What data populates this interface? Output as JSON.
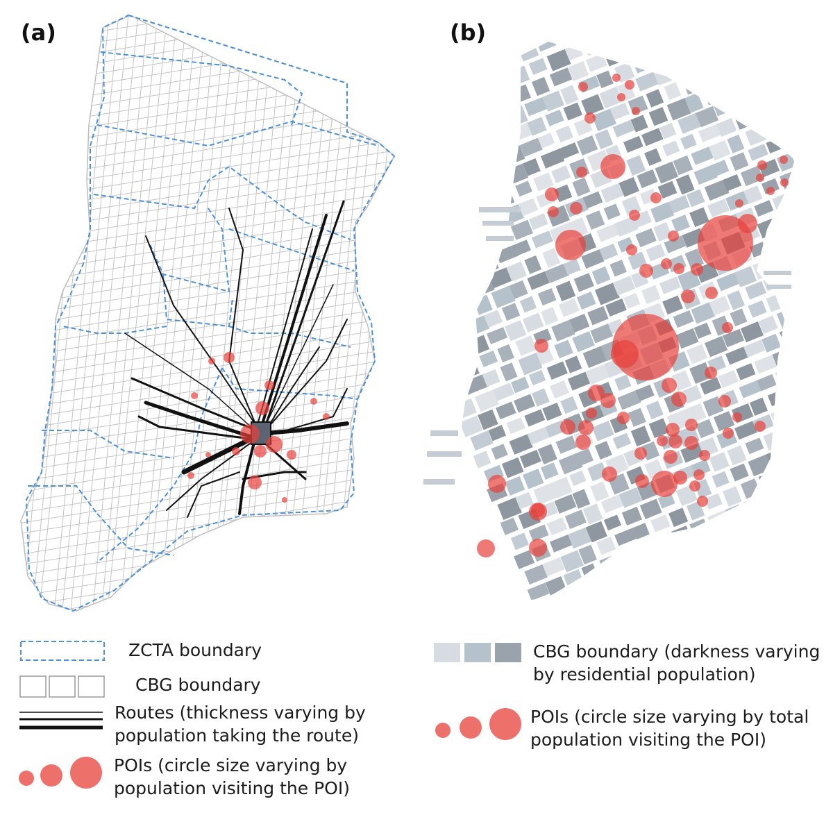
{
  "panels": {
    "a": {
      "label": "(a)"
    },
    "b": {
      "label": "(b)"
    }
  },
  "colors": {
    "zcta": "#4a90d9",
    "cbg_line": "#b9b9b9",
    "route": "#111111",
    "poi": "#e8403a",
    "block_light": "#d6dce2",
    "block_mid": "#b5c2cc",
    "block_dark": "#9aa3ac"
  },
  "legend_a": {
    "zcta": "ZCTA boundary",
    "cbg": "CBG boundary",
    "routes_line1": "Routes (thickness varying by",
    "routes_line2": "population taking the route)",
    "pois_line1": "POIs (circle size varying by",
    "pois_line2": "population visiting the POI)"
  },
  "legend_b": {
    "cbg_line1": "CBG boundary (darkness varying",
    "cbg_line2": "by residential population)",
    "pois_line1": "POIs (circle size varying by total",
    "pois_line2": "population visiting the POI)"
  }
}
